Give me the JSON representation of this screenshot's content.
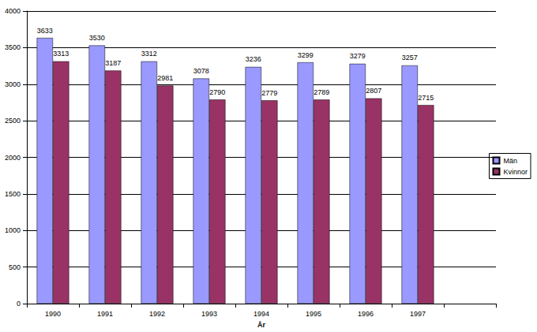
{
  "chart_data": {
    "type": "bar",
    "x_label": "År",
    "categories": [
      "1990",
      "1991",
      "1992",
      "1993",
      "1994",
      "1995",
      "1996",
      "1997",
      null
    ],
    "series": [
      {
        "name": "Män",
        "color": "#9999ff",
        "values": [
          3633,
          3530,
          3312,
          3078,
          3236,
          3299,
          3279,
          3257,
          null
        ]
      },
      {
        "name": "Kvinnor",
        "color": "#993366",
        "values": [
          3313,
          3187,
          2981,
          2790,
          2779,
          2789,
          2807,
          2715,
          null
        ]
      }
    ],
    "ylim": [
      0,
      4000
    ],
    "yticks": [
      0,
      500,
      1000,
      1500,
      2000,
      2500,
      3000,
      3500,
      4000
    ],
    "grid": true,
    "legend": "right",
    "data_labels": true
  }
}
